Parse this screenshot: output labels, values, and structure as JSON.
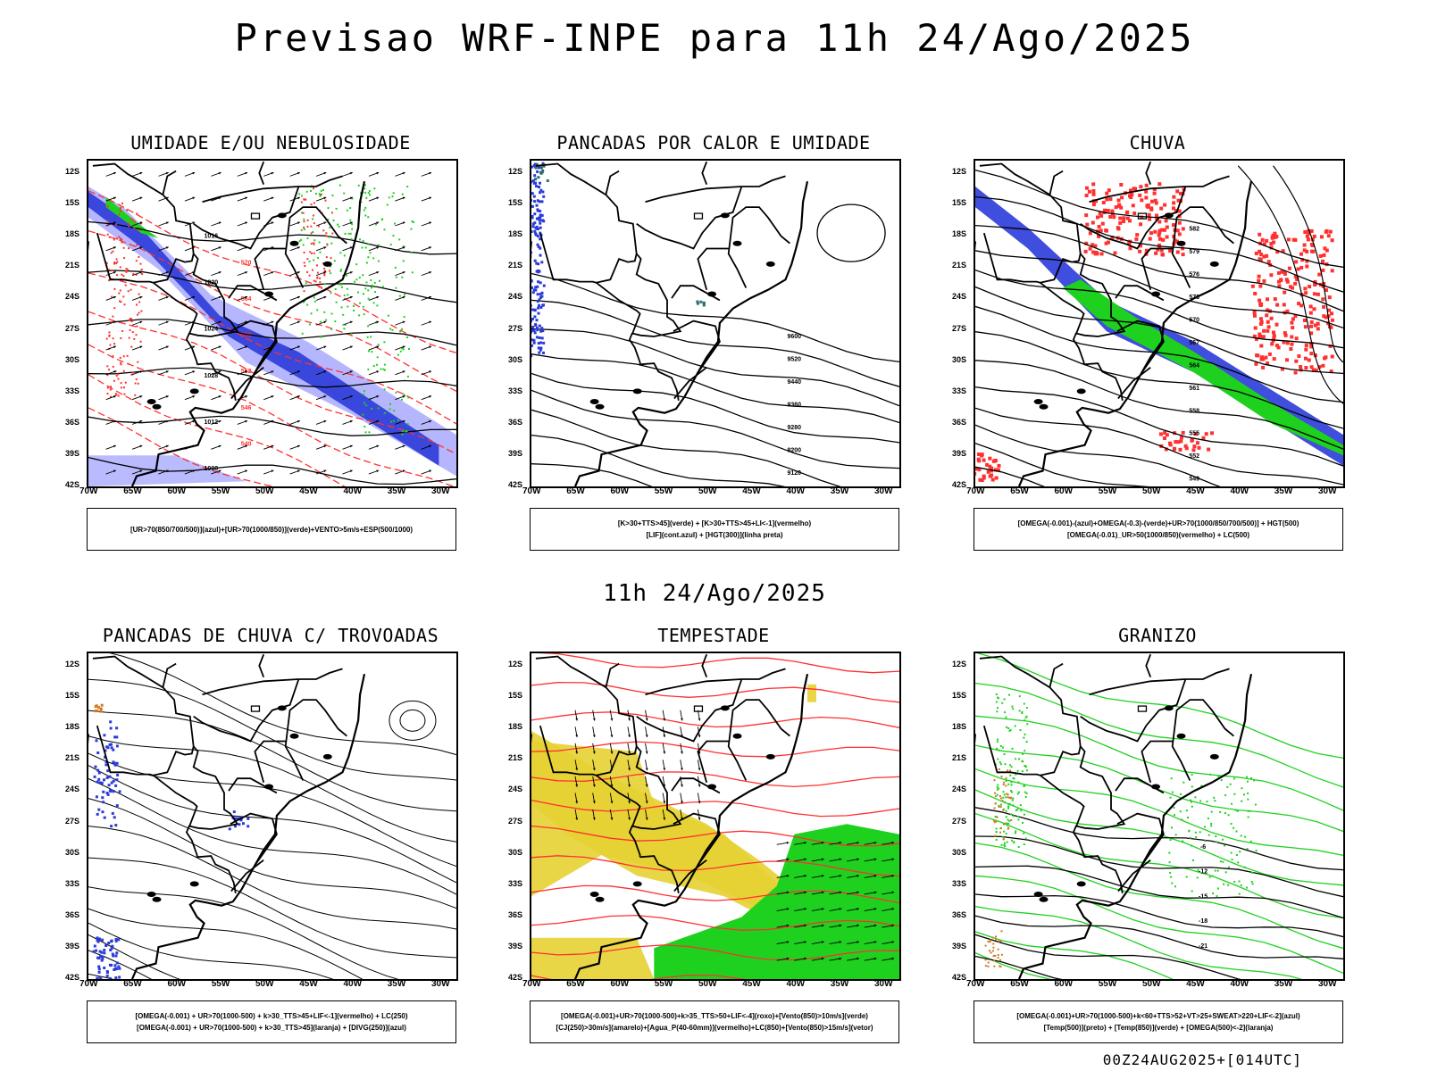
{
  "title": "Previsao WRF-INPE  para 11h 24/Ago/2025",
  "mid_title": "11h 24/Ago/2025",
  "footer": "00Z24AUG2025+[014UTC]",
  "y_ticks": [
    "12S",
    "15S",
    "18S",
    "21S",
    "24S",
    "27S",
    "30S",
    "33S",
    "36S",
    "39S",
    "42S"
  ],
  "x_ticks": [
    "70W",
    "65W",
    "60W",
    "55W",
    "50W",
    "45W",
    "40W",
    "35W",
    "30W"
  ],
  "colors": {
    "blue": "#2b3bd9",
    "lightblue": "#a9a9ff",
    "green": "#1fd11f",
    "red": "#ff3030",
    "yellow": "#e6d232",
    "orange": "#d2781e",
    "teal": "#2e6e6e"
  },
  "panels": [
    {
      "title": "UMIDADE E/OU NEBULOSIDADE",
      "legend": [
        "[UR>70(850/700/500)](azul)+[UR>70(1000/850)](verde)+VENTO>5m/s+ESP(500/1000)"
      ],
      "contour_labels": [
        "1016",
        "1020",
        "1024",
        "1028",
        "1012",
        "1008",
        "570",
        "564",
        "558",
        "552",
        "546",
        "540"
      ]
    },
    {
      "title": "PANCADAS POR CALOR E UMIDADE",
      "legend": [
        "[K>30+TTS>45](verde) + [K>30+TTS>45+LI<-1](vermelho)",
        "[LIF](cont.azul) + [HGT(300)](linha preta)"
      ],
      "contour_labels": [
        "9600",
        "9520",
        "9440",
        "9360",
        "9280",
        "9200",
        "9120",
        "9040",
        "8960"
      ]
    },
    {
      "title": "CHUVA",
      "legend": [
        "[OMEGA(-0.001)-(azul)+OMEGA(-0.3)-(verde)+UR>70(1000/850/700/500)] + HGT(500)",
        "[OMEGA(-0.01)_UR>50(1000/850)(vermelho) + LC(500)"
      ],
      "contour_labels": [
        "582",
        "579",
        "576",
        "573",
        "570",
        "567",
        "564",
        "561",
        "558",
        "555",
        "552",
        "549",
        "546",
        "543"
      ]
    },
    {
      "title": "PANCADAS DE CHUVA C/ TROVOADAS",
      "legend": [
        "[OMEGA(-0.001) + UR>70(1000-500) + k>30_TTS>45+LIF<-1](vermelho) + LC(250)",
        "[OMEGA(-0.001) + UR>70(1000-500) + k>30_TTS>45](laranja) + [DIVG(250)](azul)"
      ],
      "contour_labels": []
    },
    {
      "title": "TEMPESTADE",
      "legend": [
        "[OMEGA(-0.001)+UR>70(1000-500)+k>35_TTS>50+LIF<-4](roxo)+[Vento(850)>10m/s](verde)",
        "[CJ(250)>30m/s](amarelo)+[Agua_P(40-60mm)](vermelho)+LC(850)+[Vento(850)>15m/s](vetor)"
      ],
      "contour_labels": []
    },
    {
      "title": "GRANIZO",
      "legend": [
        "[OMEGA(-0.001)+UR>70(1000-500)+k<60+TTS>52+VT>25+SWEAT>220+LIF<-2](azul)",
        "[Temp(500)](preto) + [Temp(850)](verde) + [OMEGA(500)<-2](laranja)"
      ],
      "contour_labels": [
        "-6",
        "-12",
        "-15",
        "-18",
        "-21",
        "12"
      ]
    }
  ]
}
